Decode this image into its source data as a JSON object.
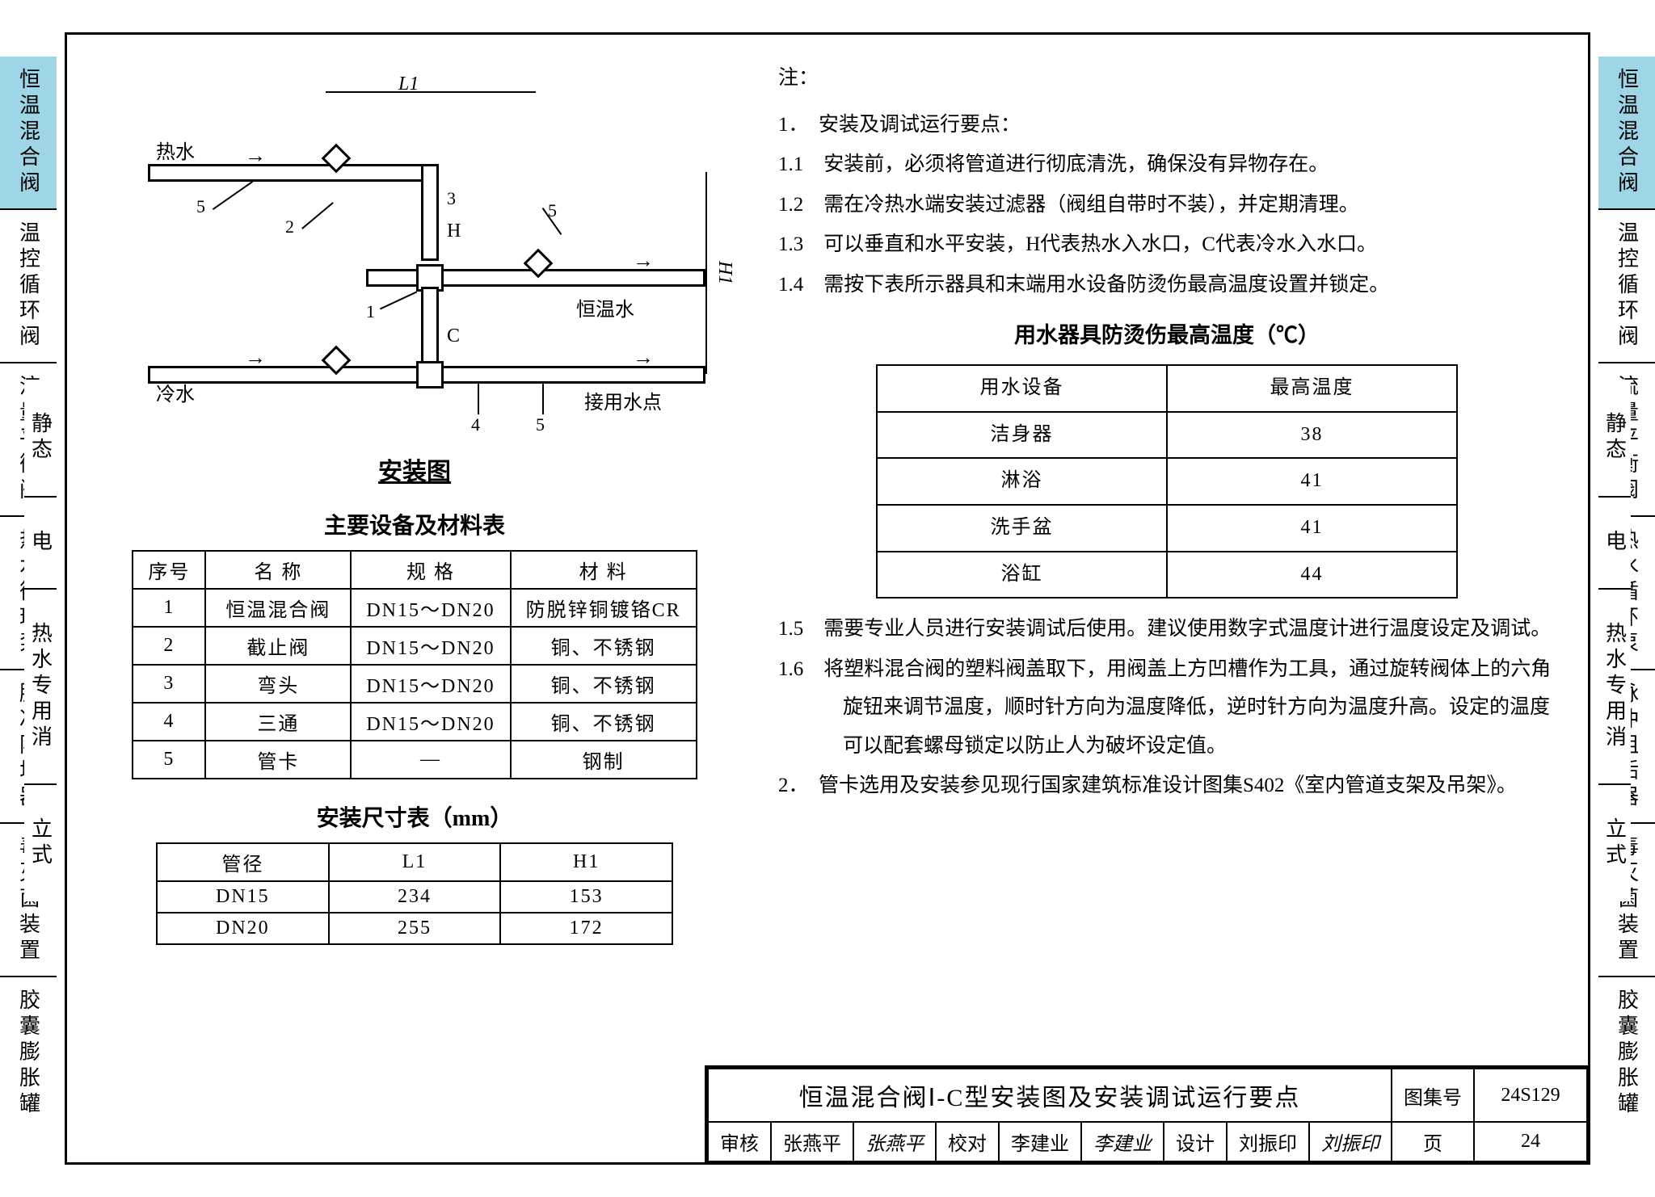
{
  "colors": {
    "tab_active": "#9ed6e8",
    "border": "#000000",
    "bg": "#ffffff"
  },
  "tabs_outer": [
    {
      "label": "恒温混合阀",
      "active": true
    },
    {
      "label": "温控循环阀",
      "active": false
    },
    {
      "label": "流量平衡阀",
      "active": false
    },
    {
      "label": "热水循环泵",
      "active": false
    },
    {
      "label": "脉冲阻垢器",
      "active": false
    },
    {
      "label": "毒灭菌装置",
      "active": false
    },
    {
      "label": "胶囊膨胀罐",
      "active": false
    }
  ],
  "tabs_inner": [
    {
      "label": "静态"
    },
    {
      "label": "电"
    },
    {
      "label": "热水专用消"
    },
    {
      "label": "立式"
    }
  ],
  "diagram": {
    "title": "安装图",
    "labels": {
      "hot": "热水",
      "cold": "冷水",
      "mixed": "恒温水",
      "outlet": "接用水点",
      "H": "H",
      "C": "C",
      "L1": "L1",
      "H1": "H1"
    },
    "callouts": [
      "1",
      "2",
      "3",
      "4",
      "5"
    ]
  },
  "equip_table": {
    "title": "主要设备及材料表",
    "headers": [
      "序号",
      "名 称",
      "规 格",
      "材 料"
    ],
    "rows": [
      [
        "1",
        "恒温混合阀",
        "DN15～DN20",
        "防脱锌铜镀铬CR"
      ],
      [
        "2",
        "截止阀",
        "DN15～DN20",
        "铜、不锈钢"
      ],
      [
        "3",
        "弯头",
        "DN15～DN20",
        "铜、不锈钢"
      ],
      [
        "4",
        "三通",
        "DN15～DN20",
        "铜、不锈钢"
      ],
      [
        "5",
        "管卡",
        "—",
        "钢制"
      ]
    ]
  },
  "dim_table": {
    "title": "安装尺寸表（mm）",
    "headers": [
      "管径",
      "L1",
      "H1"
    ],
    "rows": [
      [
        "DN15",
        "234",
        "153"
      ],
      [
        "DN20",
        "255",
        "172"
      ]
    ]
  },
  "notes": {
    "header": "注：",
    "items": [
      {
        "n": "1．",
        "t": "安装及调试运行要点："
      },
      {
        "n": "1.1",
        "t": "安装前，必须将管道进行彻底清洗，确保没有异物存在。"
      },
      {
        "n": "1.2",
        "t": "需在冷热水端安装过滤器（阀组自带时不装），并定期清理。"
      },
      {
        "n": "1.3",
        "t": "可以垂直和水平安装，H代表热水入水口，C代表冷水入水口。"
      },
      {
        "n": "1.4",
        "t": "需按下表所示器具和末端用水设备防烫伤最高温度设置并锁定。"
      }
    ],
    "items2": [
      {
        "n": "1.5",
        "t": "需要专业人员进行安装调试后使用。建议使用数字式温度计进行温度设定及调试。"
      },
      {
        "n": "1.6",
        "t": "将塑料混合阀的塑料阀盖取下，用阀盖上方凹槽作为工具，通过旋转阀体上的六角旋钮来调节温度，顺时针方向为温度降低，逆时针方向为温度升高。设定的温度可以配套螺母锁定以防止人为破坏设定值。"
      },
      {
        "n": "2．",
        "t": "管卡选用及安装参见现行国家建筑标准设计图集S402《室内管道支架及吊架》。"
      }
    ]
  },
  "temp_table": {
    "title": "用水器具防烫伤最高温度（℃）",
    "headers": [
      "用水设备",
      "最高温度"
    ],
    "rows": [
      [
        "洁身器",
        "38"
      ],
      [
        "淋浴",
        "41"
      ],
      [
        "洗手盆",
        "41"
      ],
      [
        "浴缸",
        "44"
      ]
    ]
  },
  "titleblock": {
    "main": "恒温混合阀Ⅰ-C型安装图及安装调试运行要点",
    "set_label": "图集号",
    "set_no": "24S129",
    "row2": {
      "audit_l": "审核",
      "audit_n": "张燕平",
      "audit_s": "张燕平",
      "check_l": "校对",
      "check_n": "李建业",
      "check_s": "李建业",
      "design_l": "设计",
      "design_n": "刘振印",
      "design_s": "刘振印",
      "page_l": "页",
      "page_n": "24"
    }
  }
}
